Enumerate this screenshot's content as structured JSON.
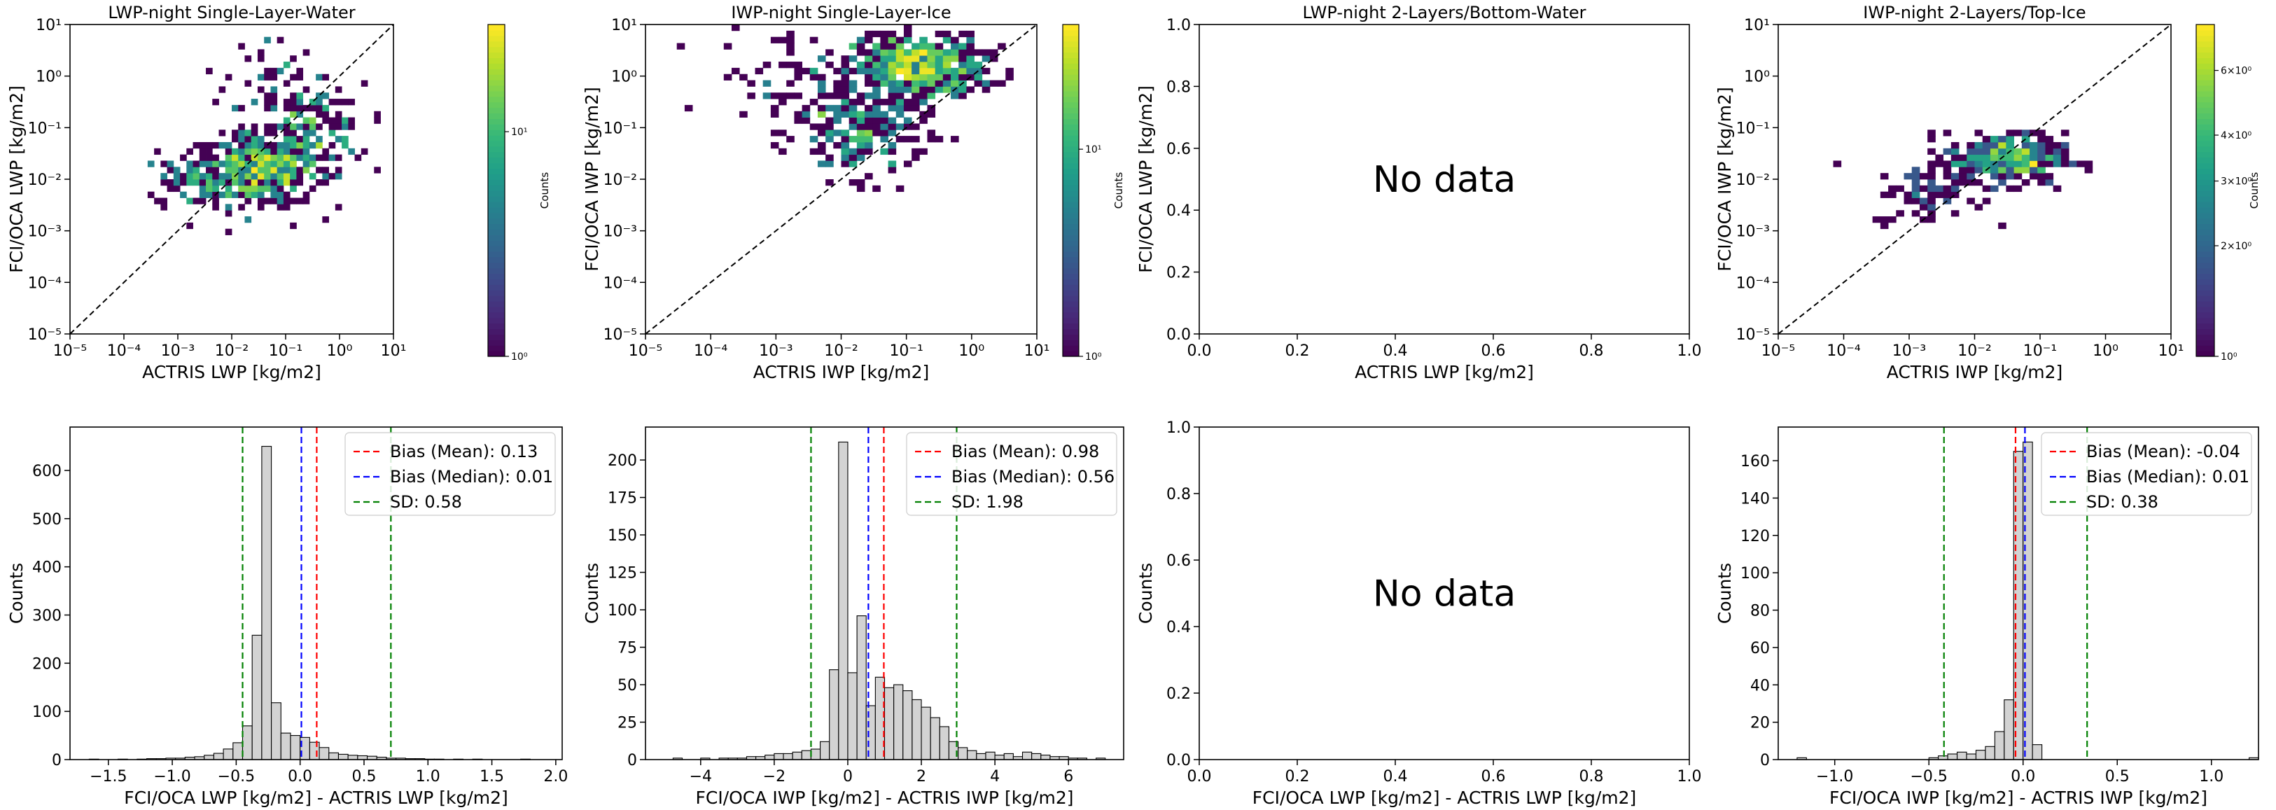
{
  "figure": {
    "background": "#ffffff"
  },
  "colors": {
    "viridis": [
      "#440154",
      "#482878",
      "#3e4989",
      "#31688e",
      "#26828e",
      "#1f9e89",
      "#35b779",
      "#6ece58",
      "#b5de2b",
      "#fde725"
    ],
    "hist_fill": "#d3d3d3",
    "hist_edge": "#000000",
    "diag": "#000000",
    "mean_line": "#ff0000",
    "median_line": "#0000ff",
    "sd_line": "#008000"
  },
  "chart_data": [
    {
      "id": "s1",
      "type": "heatmap",
      "title": "LWP-night Single-Layer-Water",
      "xlabel": "ACTRIS LWP [kg/m2]",
      "ylabel": "FCI/OCA LWP [kg/m2]",
      "xscale": "log",
      "yscale": "log",
      "xlim": [
        1e-05,
        10
      ],
      "ylim": [
        1e-05,
        10
      ],
      "xticklabels": [
        "10⁻⁵",
        "10⁻⁴",
        "10⁻³",
        "10⁻²",
        "10⁻¹",
        "10⁰",
        "10¹"
      ],
      "yticklabels": [
        "10⁻⁵",
        "10⁻⁴",
        "10⁻³",
        "10⁻²",
        "10⁻¹",
        "10⁰",
        "10¹"
      ],
      "bins": 50,
      "diagonal": true,
      "colorbar": {
        "label": "Counts",
        "scale": "log",
        "range": [
          1,
          30
        ],
        "ticklabels": [
          "10⁰",
          "10¹"
        ]
      },
      "clusters": [
        {
          "x": 0.03,
          "y": 0.015,
          "spread": [
            0.55,
            0.35
          ],
          "n": 420,
          "peak": 30
        },
        {
          "x": 0.3,
          "y": 0.08,
          "spread": [
            0.5,
            0.45
          ],
          "n": 180,
          "peak": 10
        },
        {
          "x": 0.002,
          "y": 0.01,
          "spread": [
            0.5,
            0.3
          ],
          "n": 70,
          "peak": 3
        },
        {
          "x": 0.05,
          "y": 1.0,
          "spread": [
            0.4,
            0.4
          ],
          "n": 40,
          "peak": 3
        }
      ]
    },
    {
      "id": "s2",
      "type": "heatmap",
      "title": "IWP-night Single-Layer-Ice",
      "xlabel": "ACTRIS IWP [kg/m2]",
      "ylabel": "FCI/OCA IWP [kg/m2]",
      "xscale": "log",
      "yscale": "log",
      "xlim": [
        1e-05,
        10
      ],
      "ylim": [
        1e-05,
        10
      ],
      "xticklabels": [
        "10⁻⁵",
        "10⁻⁴",
        "10⁻³",
        "10⁻²",
        "10⁻¹",
        "10⁰",
        "10¹"
      ],
      "yticklabels": [
        "10⁻⁵",
        "10⁻⁴",
        "10⁻³",
        "10⁻²",
        "10⁻¹",
        "10⁰",
        "10¹"
      ],
      "bins": 50,
      "diagonal": true,
      "colorbar": {
        "label": "Counts",
        "scale": "log",
        "range": [
          1,
          40
        ],
        "ticklabels": [
          "10⁰",
          "10¹"
        ]
      },
      "clusters": [
        {
          "x": 0.15,
          "y": 1.5,
          "spread": [
            0.5,
            0.3
          ],
          "n": 500,
          "peak": 40
        },
        {
          "x": 0.02,
          "y": 0.08,
          "spread": [
            0.5,
            0.45
          ],
          "n": 200,
          "peak": 8
        },
        {
          "x": 0.002,
          "y": 1.0,
          "spread": [
            0.6,
            0.5
          ],
          "n": 60,
          "peak": 3
        }
      ]
    },
    {
      "id": "s3",
      "type": "scatter",
      "title": "LWP-night 2-Layers/Bottom-Water",
      "xlabel": "ACTRIS LWP [kg/m2]",
      "ylabel": "FCI/OCA LWP [kg/m2]",
      "xlim": [
        0,
        1
      ],
      "ylim": [
        0,
        1
      ],
      "xticklabels": [
        "0.0",
        "0.2",
        "0.4",
        "0.6",
        "0.8",
        "1.0"
      ],
      "yticklabels": [
        "0.0",
        "0.2",
        "0.4",
        "0.6",
        "0.8",
        "1.0"
      ],
      "message": "No data"
    },
    {
      "id": "s4",
      "type": "heatmap",
      "title": "IWP-night 2-Layers/Top-Ice",
      "xlabel": "ACTRIS IWP [kg/m2]",
      "ylabel": "FCI/OCA IWP [kg/m2]",
      "xscale": "log",
      "yscale": "log",
      "xlim": [
        1e-05,
        10
      ],
      "ylim": [
        1e-05,
        10
      ],
      "xticklabels": [
        "10⁻⁵",
        "10⁻⁴",
        "10⁻³",
        "10⁻²",
        "10⁻¹",
        "10⁰",
        "10¹"
      ],
      "yticklabels": [
        "10⁻⁵",
        "10⁻⁴",
        "10⁻³",
        "10⁻²",
        "10⁻¹",
        "10⁰",
        "10¹"
      ],
      "bins": 50,
      "diagonal": true,
      "colorbar": {
        "label": "Counts",
        "scale": "log",
        "range": [
          1,
          8
        ],
        "ticklabels": [
          "10⁰",
          "2×10⁰",
          "3×10⁰",
          "4×10⁰",
          "6×10⁰"
        ]
      },
      "clusters": [
        {
          "x": 0.03,
          "y": 0.025,
          "spread": [
            0.45,
            0.25
          ],
          "n": 300,
          "peak": 8
        },
        {
          "x": 0.002,
          "y": 0.005,
          "spread": [
            0.4,
            0.3
          ],
          "n": 60,
          "peak": 3
        }
      ]
    },
    {
      "id": "h1",
      "type": "bar",
      "title": "",
      "xlabel": "FCI/OCA LWP [kg/m2] - ACTRIS LWP [kg/m2]",
      "ylabel": "Counts",
      "xlim": [
        -1.8,
        2.05
      ],
      "ylim": [
        0,
        690
      ],
      "xticks": [
        -1.5,
        -1.0,
        -0.5,
        0.0,
        0.5,
        1.0,
        1.5,
        2.0
      ],
      "xticklabels": [
        "−1.5",
        "−1.0",
        "−0.5",
        "0.0",
        "0.5",
        "1.0",
        "1.5",
        "2.0"
      ],
      "yticks": [
        0,
        100,
        200,
        300,
        400,
        500,
        600
      ],
      "yticklabels": [
        "0",
        "100",
        "200",
        "300",
        "400",
        "500",
        "600"
      ],
      "bin_edges_start": -1.65,
      "bin_width": 0.075,
      "values": [
        1,
        0,
        0,
        1,
        0,
        1,
        2,
        2,
        3,
        3,
        5,
        6,
        9,
        13,
        22,
        35,
        70,
        258,
        650,
        118,
        55,
        50,
        46,
        36,
        25,
        14,
        11,
        9,
        8,
        7,
        5,
        3,
        3,
        2,
        2,
        1,
        1,
        0,
        1,
        0,
        1,
        0,
        0,
        0,
        0,
        1,
        0,
        0
      ],
      "lines": {
        "mean": 0.13,
        "median": 0.01,
        "sd_low": -0.45,
        "sd_high": 0.71
      },
      "legend": [
        "Bias (Mean): 0.13",
        "Bias (Median): 0.01",
        "SD: 0.58"
      ],
      "legend_position": "top-right"
    },
    {
      "id": "h2",
      "type": "bar",
      "title": "",
      "xlabel": "FCI/OCA IWP [kg/m2] - ACTRIS IWP [kg/m2]",
      "ylabel": "Counts",
      "xlim": [
        -5.5,
        7.5
      ],
      "ylim": [
        0,
        222
      ],
      "xticks": [
        -4,
        -2,
        0,
        2,
        4,
        6
      ],
      "xticklabels": [
        "−4",
        "−2",
        "0",
        "2",
        "4",
        "6"
      ],
      "yticks": [
        0,
        25,
        50,
        75,
        100,
        125,
        150,
        175,
        200
      ],
      "yticklabels": [
        "0",
        "25",
        "50",
        "75",
        "100",
        "125",
        "150",
        "175",
        "200"
      ],
      "bin_edges_start": -4.75,
      "bin_width": 0.25,
      "values": [
        1,
        0,
        0,
        1,
        0,
        1,
        1,
        1,
        2,
        2,
        3,
        4,
        4,
        5,
        6,
        7,
        12,
        60,
        212,
        58,
        96,
        36,
        55,
        48,
        50,
        46,
        40,
        35,
        28,
        22,
        12,
        8,
        6,
        4,
        5,
        3,
        4,
        2,
        5,
        4,
        3,
        2,
        2,
        1,
        1,
        0,
        1
      ],
      "lines": {
        "mean": 0.98,
        "median": 0.56,
        "sd_low": -1.0,
        "sd_high": 2.96
      },
      "legend": [
        "Bias (Mean): 0.98",
        "Bias (Median): 0.56",
        "SD: 1.98"
      ],
      "legend_position": "top-right"
    },
    {
      "id": "h3",
      "type": "bar",
      "title": "",
      "xlabel": "FCI/OCA LWP [kg/m2] - ACTRIS LWP [kg/m2]",
      "ylabel": "Counts",
      "xlim": [
        0,
        1
      ],
      "ylim": [
        0,
        1
      ],
      "xticklabels": [
        "0.0",
        "0.2",
        "0.4",
        "0.6",
        "0.8",
        "1.0"
      ],
      "yticklabels": [
        "0.0",
        "0.2",
        "0.4",
        "0.6",
        "0.8",
        "1.0"
      ],
      "message": "No data"
    },
    {
      "id": "h4",
      "type": "bar",
      "title": "",
      "xlabel": "FCI/OCA IWP [kg/m2] - ACTRIS IWP [kg/m2]",
      "ylabel": "Counts",
      "xlim": [
        -1.3,
        1.25
      ],
      "ylim": [
        0,
        178
      ],
      "xticks": [
        -1.0,
        -0.5,
        0.0,
        0.5,
        1.0
      ],
      "xticklabels": [
        "−1.0",
        "−0.5",
        "0.0",
        "0.5",
        "1.0"
      ],
      "yticks": [
        0,
        20,
        40,
        60,
        80,
        100,
        120,
        140,
        160
      ],
      "yticklabels": [
        "0",
        "20",
        "40",
        "60",
        "80",
        "100",
        "120",
        "140",
        "160"
      ],
      "bin_edges_start": -1.2,
      "bin_width": 0.05,
      "values": [
        1,
        0,
        0,
        0,
        0,
        0,
        0,
        0,
        0,
        0,
        0,
        0,
        0,
        0,
        1,
        2,
        3,
        4,
        3,
        5,
        7,
        15,
        32,
        165,
        170,
        8,
        0,
        0,
        0,
        0,
        0,
        0,
        0,
        0,
        0,
        0,
        0,
        0,
        0,
        0,
        0,
        0,
        0,
        0,
        0,
        0,
        0,
        0,
        1
      ],
      "lines": {
        "mean": -0.04,
        "median": 0.01,
        "sd_low": -0.42,
        "sd_high": 0.34
      },
      "legend": [
        "Bias (Mean): -0.04",
        "Bias (Median): 0.01",
        "SD: 0.38"
      ],
      "legend_position": "top-right"
    }
  ]
}
